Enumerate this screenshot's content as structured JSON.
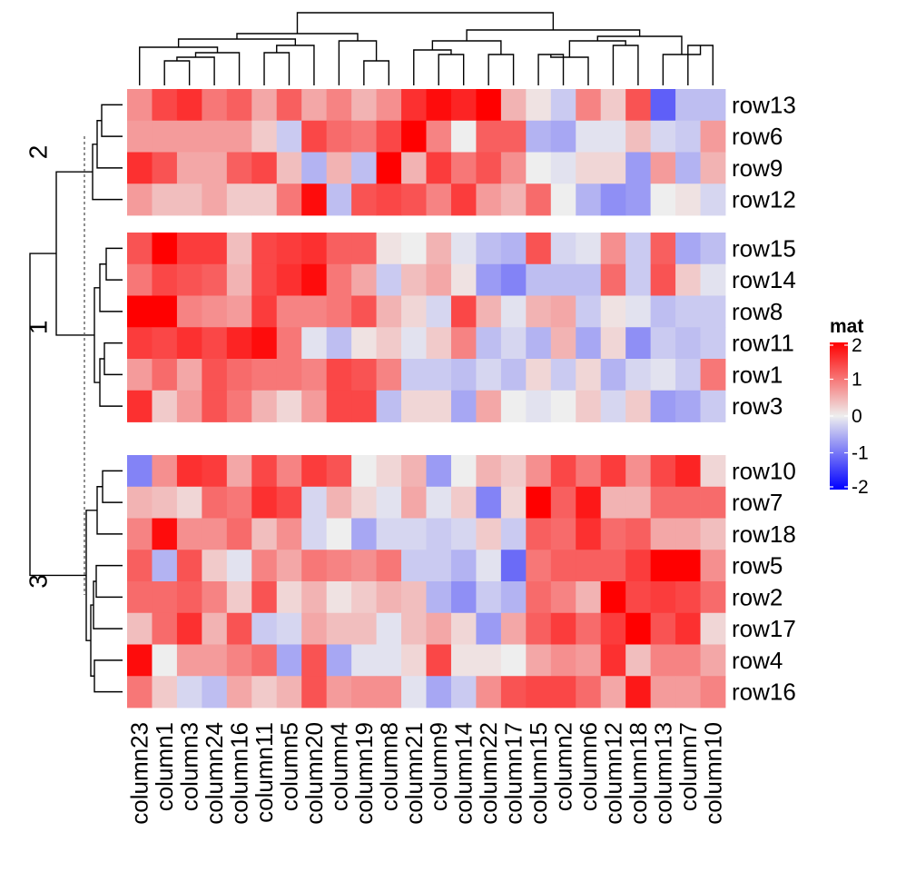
{
  "chart_data": {
    "type": "heatmap",
    "title": "",
    "xlabel": "",
    "ylabel": "",
    "columns": [
      "column23",
      "column1",
      "column3",
      "column24",
      "column16",
      "column11",
      "column5",
      "column20",
      "column4",
      "column19",
      "column8",
      "column21",
      "column9",
      "column14",
      "column22",
      "column17",
      "column15",
      "column2",
      "column6",
      "column12",
      "column18",
      "column13",
      "column7",
      "column10"
    ],
    "row_groups": [
      {
        "label": "2",
        "rows": [
          {
            "name": "row13",
            "values": [
              0.8,
              1.4,
              1.6,
              1.0,
              1.2,
              0.6,
              1.2,
              0.6,
              0.9,
              0.5,
              0.8,
              1.6,
              1.9,
              1.7,
              2.0,
              0.5,
              0.1,
              -0.3,
              0.9,
              0.3,
              1.3,
              -1.2,
              -0.4,
              -0.4
            ]
          },
          {
            "name": "row6",
            "values": [
              0.7,
              0.7,
              0.7,
              0.7,
              0.7,
              0.3,
              -0.3,
              1.4,
              1.1,
              1.0,
              1.4,
              2.0,
              0.9,
              0.0,
              1.2,
              1.2,
              -0.5,
              -0.6,
              -0.1,
              -0.1,
              0.4,
              -0.2,
              -0.3,
              0.7
            ]
          },
          {
            "name": "row9",
            "values": [
              1.6,
              1.3,
              0.6,
              0.6,
              1.2,
              1.4,
              0.4,
              -0.5,
              0.5,
              -0.4,
              2.1,
              0.5,
              1.5,
              1.0,
              1.3,
              0.8,
              0.0,
              -0.1,
              0.2,
              0.2,
              -0.7,
              0.7,
              -0.5,
              0.5
            ]
          },
          {
            "name": "row12",
            "values": [
              0.7,
              0.4,
              0.4,
              0.6,
              0.3,
              0.3,
              1.0,
              1.9,
              -0.4,
              1.3,
              1.4,
              1.3,
              0.9,
              1.5,
              0.7,
              0.5,
              1.1,
              0.0,
              -0.5,
              -0.8,
              -0.7,
              0.0,
              0.1,
              -0.2
            ]
          }
        ]
      },
      {
        "label": "1",
        "rows": [
          {
            "name": "row15",
            "values": [
              1.3,
              2.0,
              1.5,
              1.5,
              0.4,
              1.4,
              1.5,
              1.6,
              1.2,
              1.2,
              0.1,
              0.0,
              0.5,
              -0.1,
              -0.4,
              -0.5,
              1.3,
              -0.2,
              -0.1,
              0.8,
              -0.3,
              1.2,
              -0.6,
              -0.4
            ]
          },
          {
            "name": "row14",
            "values": [
              1.0,
              1.4,
              1.3,
              1.2,
              0.5,
              1.4,
              1.6,
              1.9,
              1.0,
              0.6,
              -0.3,
              0.4,
              0.6,
              0.1,
              -0.7,
              -0.9,
              -0.4,
              -0.4,
              -0.4,
              1.1,
              -0.3,
              1.3,
              0.3,
              -0.1
            ]
          },
          {
            "name": "row8",
            "values": [
              2.0,
              2.1,
              0.9,
              0.8,
              0.7,
              1.5,
              0.9,
              0.9,
              1.0,
              1.3,
              0.5,
              0.2,
              -0.2,
              1.4,
              0.5,
              -0.1,
              0.5,
              0.6,
              -0.3,
              0.1,
              -0.1,
              -0.4,
              -0.3,
              -0.3
            ]
          },
          {
            "name": "row11",
            "values": [
              1.5,
              1.4,
              1.6,
              1.4,
              1.7,
              1.9,
              1.0,
              -0.1,
              -0.4,
              0.1,
              0.3,
              -0.1,
              0.3,
              0.9,
              -0.4,
              -0.2,
              -0.5,
              0.5,
              -0.6,
              0.2,
              -0.8,
              -0.3,
              -0.4,
              -0.3
            ]
          },
          {
            "name": "row1",
            "values": [
              0.7,
              1.1,
              0.6,
              1.3,
              1.1,
              1.0,
              1.0,
              0.9,
              1.4,
              1.3,
              0.9,
              -0.3,
              -0.3,
              -0.4,
              -0.2,
              -0.4,
              0.2,
              -0.3,
              0.2,
              -0.5,
              -0.2,
              -0.1,
              -0.3,
              1.0
            ]
          },
          {
            "name": "row3",
            "values": [
              1.6,
              0.3,
              0.7,
              1.3,
              1.0,
              0.5,
              0.2,
              0.7,
              1.4,
              1.4,
              -0.4,
              0.2,
              0.2,
              -0.6,
              0.6,
              0.0,
              -0.1,
              0.0,
              0.3,
              -0.2,
              0.3,
              -0.7,
              -0.6,
              -0.3
            ]
          }
        ]
      },
      {
        "label": "3",
        "rows": [
          {
            "name": "row10",
            "values": [
              -0.9,
              0.8,
              1.6,
              1.5,
              0.6,
              1.4,
              0.9,
              1.5,
              1.3,
              0.0,
              0.2,
              0.5,
              -0.7,
              0.0,
              0.5,
              0.3,
              0.8,
              1.4,
              1.0,
              1.5,
              0.8,
              1.4,
              1.7,
              0.2
            ]
          },
          {
            "name": "row7",
            "values": [
              0.5,
              0.4,
              0.2,
              1.1,
              1.0,
              1.6,
              1.4,
              -0.2,
              0.5,
              0.2,
              -0.1,
              0.6,
              -0.1,
              0.3,
              -0.9,
              0.2,
              2.1,
              1.2,
              1.8,
              0.5,
              0.5,
              1.1,
              1.1,
              1.1
            ]
          },
          {
            "name": "row18",
            "values": [
              0.9,
              1.9,
              0.8,
              0.8,
              1.1,
              0.4,
              0.8,
              -0.2,
              0.0,
              -0.6,
              -0.2,
              -0.2,
              -0.3,
              -0.2,
              0.3,
              -0.3,
              1.2,
              1.1,
              1.6,
              1.1,
              1.2,
              0.6,
              0.6,
              0.4
            ]
          },
          {
            "name": "row5",
            "values": [
              1.2,
              -0.5,
              1.3,
              0.3,
              -0.1,
              0.9,
              0.6,
              1.0,
              0.9,
              0.8,
              1.0,
              -0.3,
              -0.3,
              -0.5,
              -0.1,
              -1.1,
              1.0,
              1.2,
              1.2,
              1.2,
              1.5,
              2.0,
              2.0,
              0.8
            ]
          },
          {
            "name": "row2",
            "values": [
              1.1,
              1.1,
              1.2,
              0.9,
              0.3,
              1.3,
              0.2,
              0.5,
              0.1,
              0.3,
              0.5,
              0.4,
              -0.5,
              -0.8,
              -0.3,
              -0.5,
              1.1,
              0.9,
              0.5,
              2.0,
              1.4,
              1.5,
              1.4,
              1.1
            ]
          },
          {
            "name": "row17",
            "values": [
              0.4,
              1.1,
              1.6,
              0.5,
              1.3,
              -0.3,
              -0.2,
              0.6,
              0.4,
              0.4,
              -0.1,
              0.4,
              0.6,
              0.2,
              -0.7,
              0.6,
              1.2,
              1.5,
              1.1,
              1.5,
              2.1,
              1.3,
              1.6,
              0.2
            ]
          },
          {
            "name": "row4",
            "values": [
              1.9,
              0.0,
              0.7,
              0.7,
              0.9,
              1.1,
              -0.6,
              1.3,
              -0.6,
              -0.1,
              -0.1,
              0.2,
              1.4,
              0.1,
              0.1,
              0.0,
              0.6,
              0.8,
              0.7,
              1.6,
              0.4,
              0.9,
              0.9,
              0.6
            ]
          },
          {
            "name": "row16",
            "values": [
              1.0,
              0.3,
              -0.2,
              -0.4,
              0.6,
              0.3,
              0.5,
              1.3,
              0.7,
              0.8,
              0.8,
              -0.1,
              -0.6,
              -0.3,
              0.8,
              1.3,
              1.4,
              1.4,
              1.1,
              0.6,
              1.8,
              0.7,
              0.7,
              0.9
            ]
          }
        ]
      }
    ],
    "color_scale": {
      "min": -2,
      "mid": 0,
      "max": 2,
      "low_color": "#0000ff",
      "mid_color": "#eeeeee",
      "high_color": "#ff0000"
    },
    "legend": {
      "title": "mat",
      "ticks": [
        "2",
        "1",
        "0",
        "-1",
        "-2"
      ],
      "tick_values": [
        2,
        1,
        0,
        -1,
        -2
      ],
      "position": "right"
    }
  }
}
